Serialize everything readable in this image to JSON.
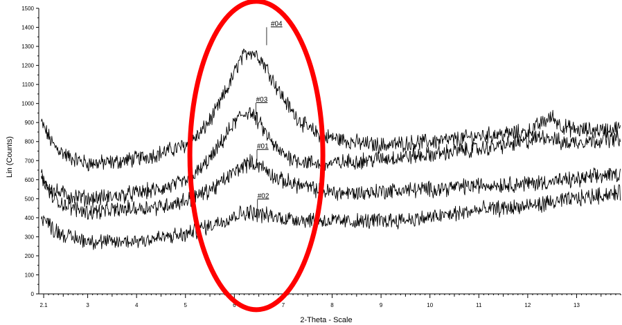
{
  "chart_data": {
    "type": "line",
    "title": "",
    "xlabel": "2-Theta - Scale",
    "ylabel": "Lin (Counts)",
    "xlim": [
      2.0,
      13.9
    ],
    "ylim": [
      0,
      1500
    ],
    "x_ticks": [
      {
        "value": 2.1,
        "label": "2.1"
      },
      {
        "value": 3,
        "label": "3"
      },
      {
        "value": 4,
        "label": "4"
      },
      {
        "value": 5,
        "label": "5"
      },
      {
        "value": 6,
        "label": "6"
      },
      {
        "value": 7,
        "label": "7"
      },
      {
        "value": 8,
        "label": "8"
      },
      {
        "value": 9,
        "label": "9"
      },
      {
        "value": 10,
        "label": "10"
      },
      {
        "value": 11,
        "label": "11"
      },
      {
        "value": 12,
        "label": "12"
      },
      {
        "value": 13,
        "label": "13"
      }
    ],
    "y_ticks": [
      {
        "value": 0,
        "label": "0"
      },
      {
        "value": 100,
        "label": "100"
      },
      {
        "value": 200,
        "label": "200"
      },
      {
        "value": 300,
        "label": "300"
      },
      {
        "value": 400,
        "label": "400"
      },
      {
        "value": 500,
        "label": "500"
      },
      {
        "value": 600,
        "label": "600"
      },
      {
        "value": 700,
        "label": "700"
      },
      {
        "value": 800,
        "label": "800"
      },
      {
        "value": 900,
        "label": "900"
      },
      {
        "value": 1000,
        "label": "1000"
      },
      {
        "value": 1100,
        "label": "1100"
      },
      {
        "value": 1200,
        "label": "1200"
      },
      {
        "value": 1300,
        "label": "1300"
      },
      {
        "value": 1400,
        "label": "1400"
      },
      {
        "value": 1500,
        "label": "1500"
      }
    ],
    "grid": false,
    "series": [
      {
        "name": "#04",
        "peak_x": 6.32,
        "points": [
          [
            2.05,
            900
          ],
          [
            2.3,
            780
          ],
          [
            2.6,
            720
          ],
          [
            3.0,
            685
          ],
          [
            3.5,
            690
          ],
          [
            4.0,
            710
          ],
          [
            4.5,
            740
          ],
          [
            5.0,
            780
          ],
          [
            5.3,
            840
          ],
          [
            5.6,
            950
          ],
          [
            5.9,
            1100
          ],
          [
            6.1,
            1220
          ],
          [
            6.3,
            1280
          ],
          [
            6.5,
            1250
          ],
          [
            6.7,
            1170
          ],
          [
            6.9,
            1070
          ],
          [
            7.2,
            950
          ],
          [
            7.5,
            870
          ],
          [
            7.8,
            830
          ],
          [
            8.2,
            810
          ],
          [
            8.6,
            790
          ],
          [
            9.0,
            780
          ],
          [
            9.5,
            790
          ],
          [
            10.0,
            800
          ],
          [
            10.5,
            810
          ],
          [
            11.0,
            830
          ],
          [
            11.5,
            840
          ],
          [
            12.0,
            850
          ],
          [
            12.3,
            900
          ],
          [
            12.5,
            930
          ],
          [
            12.7,
            880
          ],
          [
            13.0,
            860
          ],
          [
            13.5,
            860
          ],
          [
            13.9,
            870
          ]
        ]
      },
      {
        "name": "#03",
        "peak_x": 6.4,
        "points": [
          [
            2.05,
            600
          ],
          [
            2.3,
            540
          ],
          [
            2.6,
            520
          ],
          [
            3.0,
            500
          ],
          [
            3.5,
            510
          ],
          [
            4.0,
            530
          ],
          [
            4.5,
            550
          ],
          [
            5.0,
            590
          ],
          [
            5.3,
            650
          ],
          [
            5.6,
            740
          ],
          [
            5.9,
            860
          ],
          [
            6.1,
            930
          ],
          [
            6.3,
            960
          ],
          [
            6.5,
            900
          ],
          [
            6.7,
            820
          ],
          [
            6.9,
            750
          ],
          [
            7.2,
            710
          ],
          [
            7.5,
            690
          ],
          [
            7.8,
            680
          ],
          [
            8.2,
            690
          ],
          [
            8.6,
            700
          ],
          [
            9.0,
            710
          ],
          [
            9.5,
            720
          ],
          [
            10.0,
            730
          ],
          [
            10.5,
            750
          ],
          [
            11.0,
            760
          ],
          [
            11.5,
            780
          ],
          [
            12.0,
            800
          ],
          [
            12.3,
            830
          ],
          [
            12.5,
            820
          ],
          [
            12.7,
            790
          ],
          [
            13.0,
            800
          ],
          [
            13.5,
            810
          ],
          [
            13.9,
            820
          ]
        ]
      },
      {
        "name": "#01",
        "peak_x": 6.42,
        "points": [
          [
            2.05,
            620
          ],
          [
            2.3,
            500
          ],
          [
            2.6,
            460
          ],
          [
            3.0,
            430
          ],
          [
            3.5,
            440
          ],
          [
            4.0,
            450
          ],
          [
            4.5,
            460
          ],
          [
            5.0,
            490
          ],
          [
            5.3,
            520
          ],
          [
            5.6,
            560
          ],
          [
            5.9,
            620
          ],
          [
            6.1,
            660
          ],
          [
            6.3,
            690
          ],
          [
            6.5,
            680
          ],
          [
            6.7,
            640
          ],
          [
            6.9,
            600
          ],
          [
            7.2,
            580
          ],
          [
            7.5,
            560
          ],
          [
            7.8,
            540
          ],
          [
            8.2,
            530
          ],
          [
            8.6,
            530
          ],
          [
            9.0,
            540
          ],
          [
            9.5,
            545
          ],
          [
            10.0,
            550
          ],
          [
            10.5,
            560
          ],
          [
            11.0,
            570
          ],
          [
            11.5,
            575
          ],
          [
            12.0,
            580
          ],
          [
            12.5,
            590
          ],
          [
            13.0,
            600
          ],
          [
            13.5,
            620
          ],
          [
            13.9,
            630
          ]
        ]
      },
      {
        "name": "#02",
        "peak_x": 6.43,
        "points": [
          [
            2.05,
            410
          ],
          [
            2.3,
            340
          ],
          [
            2.6,
            300
          ],
          [
            3.0,
            280
          ],
          [
            3.5,
            270
          ],
          [
            4.0,
            280
          ],
          [
            4.5,
            295
          ],
          [
            5.0,
            310
          ],
          [
            5.3,
            340
          ],
          [
            5.6,
            370
          ],
          [
            5.9,
            400
          ],
          [
            6.1,
            420
          ],
          [
            6.3,
            430
          ],
          [
            6.5,
            420
          ],
          [
            6.7,
            410
          ],
          [
            6.9,
            400
          ],
          [
            7.2,
            395
          ],
          [
            7.5,
            390
          ],
          [
            7.8,
            385
          ],
          [
            8.2,
            380
          ],
          [
            8.6,
            380
          ],
          [
            9.0,
            385
          ],
          [
            9.5,
            390
          ],
          [
            10.0,
            400
          ],
          [
            10.5,
            420
          ],
          [
            11.0,
            440
          ],
          [
            11.5,
            450
          ],
          [
            12.0,
            460
          ],
          [
            12.5,
            480
          ],
          [
            13.0,
            500
          ],
          [
            13.5,
            520
          ],
          [
            13.9,
            530
          ]
        ]
      }
    ],
    "annotation": {
      "shape": "ellipse",
      "color": "#ff0000",
      "center_x": 6.45,
      "center_y": 727,
      "half_width_x": 1.36,
      "half_height_y": 810
    }
  }
}
